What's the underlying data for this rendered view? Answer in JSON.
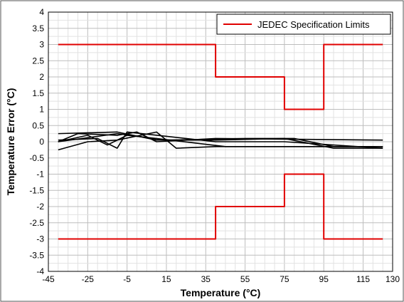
{
  "chart_data": {
    "type": "line",
    "title": "",
    "xlabel": "Temperature (°C)",
    "ylabel": "Temperature Error (°C)",
    "xlim": [
      -45,
      130
    ],
    "ylim": [
      -4,
      4
    ],
    "x_ticks": [
      -45,
      -25,
      -5,
      15,
      35,
      55,
      75,
      95,
      115,
      130
    ],
    "y_ticks": [
      -4,
      -3.5,
      -3,
      -2.5,
      -2,
      -1.5,
      -1,
      -0.5,
      0,
      0.5,
      1,
      1.5,
      2,
      2.5,
      3,
      3.5,
      4
    ],
    "grid": true,
    "legend_position": "top-right",
    "series": [
      {
        "name": "JEDEC Specification Limits",
        "color": "#e00000",
        "points": [
          [
            -40,
            3
          ],
          [
            40,
            3
          ],
          [
            40,
            2
          ],
          [
            75,
            2
          ],
          [
            75,
            1
          ],
          [
            95,
            1
          ],
          [
            95,
            3
          ],
          [
            125,
            3
          ]
        ]
      },
      {
        "name": "",
        "color": "#e00000",
        "points": [
          [
            -40,
            -3
          ],
          [
            40,
            -3
          ],
          [
            40,
            -2
          ],
          [
            75,
            -2
          ],
          [
            75,
            -1
          ],
          [
            95,
            -1
          ],
          [
            95,
            -3
          ],
          [
            125,
            -3
          ]
        ]
      },
      {
        "name": "",
        "color": "#000000",
        "points": [
          [
            -40,
            0.25
          ],
          [
            -10,
            0.3
          ],
          [
            10,
            0.05
          ],
          [
            40,
            0.05
          ],
          [
            75,
            0.1
          ],
          [
            100,
            -0.2
          ],
          [
            125,
            -0.2
          ]
        ]
      },
      {
        "name": "",
        "color": "#000000",
        "points": [
          [
            -40,
            -0.25
          ],
          [
            -25,
            0.0
          ],
          [
            -10,
            0.05
          ],
          [
            10,
            0.3
          ],
          [
            20,
            -0.2
          ],
          [
            40,
            -0.15
          ],
          [
            75,
            -0.15
          ],
          [
            125,
            -0.15
          ]
        ]
      },
      {
        "name": "",
        "color": "#000000",
        "points": [
          [
            -40,
            0.0
          ],
          [
            -30,
            0.25
          ],
          [
            -10,
            0.2
          ],
          [
            0,
            0.3
          ],
          [
            10,
            0.0
          ],
          [
            40,
            0.1
          ],
          [
            125,
            0.05
          ]
        ]
      },
      {
        "name": "",
        "color": "#000000",
        "points": [
          [
            -40,
            0.0
          ],
          [
            -25,
            0.2
          ],
          [
            -15,
            -0.1
          ],
          [
            -5,
            0.2
          ],
          [
            10,
            0.1
          ],
          [
            45,
            -0.15
          ],
          [
            125,
            -0.15
          ]
        ]
      },
      {
        "name": "",
        "color": "#000000",
        "points": [
          [
            -40,
            0.05
          ],
          [
            -20,
            0.1
          ],
          [
            -10,
            -0.2
          ],
          [
            -5,
            0.3
          ],
          [
            25,
            0.1
          ],
          [
            40,
            0.0
          ],
          [
            75,
            0.0
          ],
          [
            125,
            -0.2
          ]
        ]
      },
      {
        "name": "",
        "color": "#000000",
        "points": [
          [
            -40,
            0.0
          ],
          [
            -10,
            0.25
          ],
          [
            15,
            0.05
          ],
          [
            55,
            0.1
          ],
          [
            80,
            0.1
          ],
          [
            100,
            -0.15
          ],
          [
            125,
            -0.15
          ]
        ]
      }
    ]
  }
}
